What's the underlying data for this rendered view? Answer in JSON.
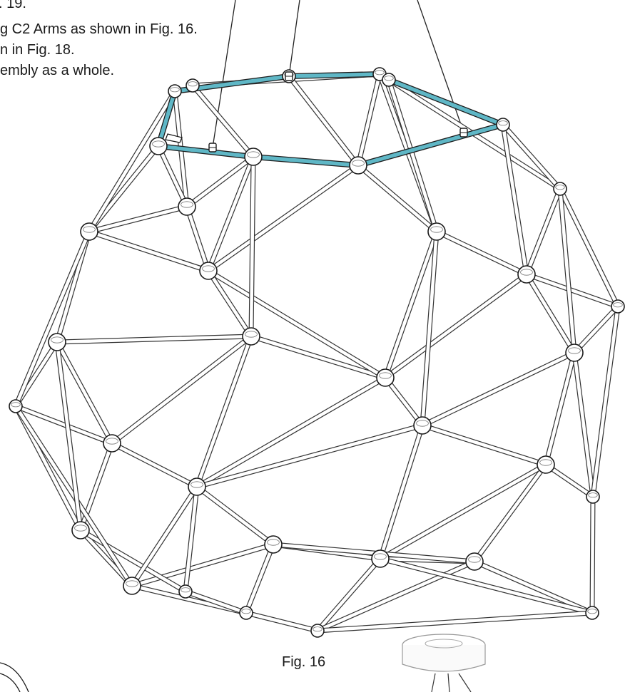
{
  "instructions": [
    {
      "text": ". 19."
    },
    {
      "text": "g C2 Arms as shown in Fig. 16."
    },
    {
      "text": "n in Fig. 18."
    },
    {
      "text": "embly as a whole."
    }
  ],
  "figure_caption": "Fig. 16",
  "colors": {
    "highlight_arm": "#5fb7c6",
    "strut": "#333333",
    "hub_fill": "#ffffff"
  }
}
